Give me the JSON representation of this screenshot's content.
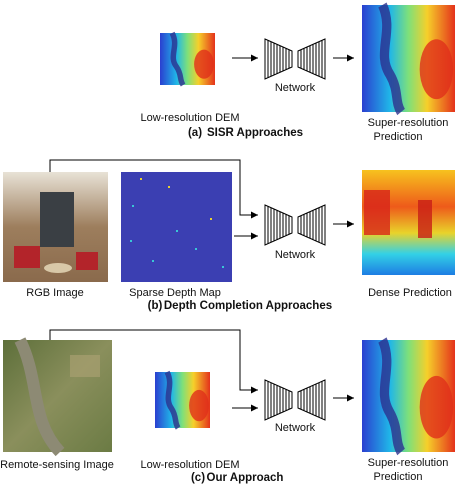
{
  "panels": [
    {
      "caption_tag": "(a)",
      "caption_title": "SISR Approaches",
      "input_labels": [
        "Low-resolution DEM"
      ],
      "network_label": "Network",
      "output_label": [
        "Super-resolution",
        "Prediction"
      ]
    },
    {
      "caption_tag": "(b)",
      "caption_title": "Depth Completion Approaches",
      "input_labels": [
        "RGB Image",
        "Sparse Depth Map"
      ],
      "network_label": "Network",
      "output_label": [
        "Dense Prediction"
      ]
    },
    {
      "caption_tag": "(c)",
      "caption_title": "Our Approach",
      "input_labels": [
        "Remote-sensing Image",
        "Low-resolution DEM"
      ],
      "network_label": "Network",
      "output_label": [
        "Super-resolution",
        "Prediction"
      ]
    }
  ]
}
